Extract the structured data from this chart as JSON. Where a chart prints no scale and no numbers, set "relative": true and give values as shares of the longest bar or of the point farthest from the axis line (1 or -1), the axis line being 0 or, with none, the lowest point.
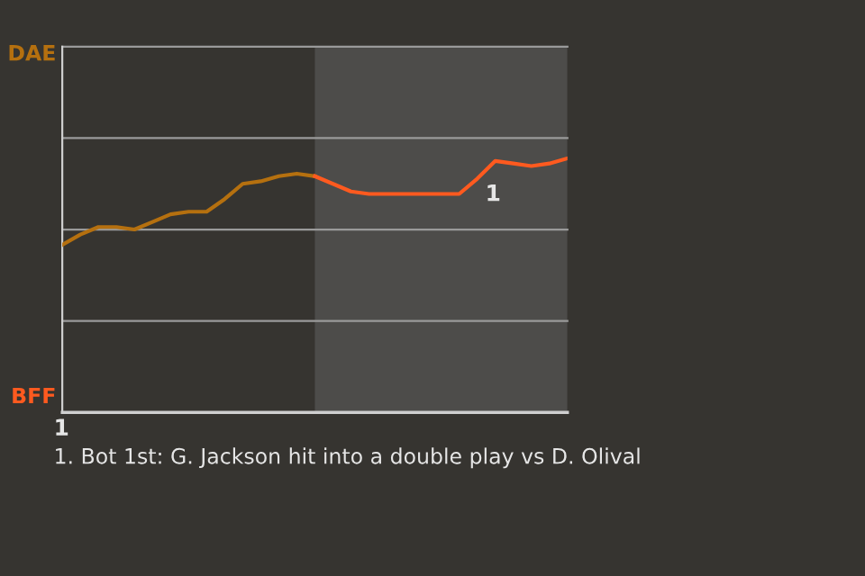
{
  "chart_data": {
    "type": "line",
    "relative": true,
    "categories": [
      null,
      null,
      null,
      null,
      null,
      null,
      null,
      null,
      null,
      null,
      null,
      null,
      null,
      null,
      null,
      null,
      null,
      null,
      null,
      null,
      null,
      null,
      null,
      null,
      null,
      null,
      null,
      null,
      null
    ],
    "series": [
      {
        "color": "#b5700f",
        "values": [
          0.66,
          0.7,
          0.73,
          0.73,
          0.72,
          0.75,
          0.78,
          0.79,
          0.79,
          0.84,
          0.9,
          0.91,
          0.93,
          0.94,
          0.93,
          null,
          null,
          null,
          null,
          null,
          null,
          null,
          null,
          null,
          null,
          null,
          null,
          null,
          null
        ]
      },
      {
        "color": "#ff5a1f",
        "values": [
          null,
          null,
          null,
          null,
          null,
          null,
          null,
          null,
          null,
          null,
          null,
          null,
          null,
          null,
          0.93,
          0.9,
          0.87,
          0.86,
          0.86,
          0.86,
          0.86,
          0.86,
          0.86,
          0.92,
          0.99,
          0.98,
          0.97,
          0.98,
          1
        ]
      }
    ],
    "ref_lines": [
      {
        "axis": "y",
        "value": 0.36,
        "color": "#9a9a9a"
      },
      {
        "axis": "y",
        "value": 0.72,
        "color": "#9a9a9a"
      },
      {
        "axis": "y",
        "value": 1.08,
        "color": "#9a9a9a"
      },
      {
        "axis": "y",
        "value": 1.44,
        "color": "#9a9a9a"
      }
    ],
    "annotations": [
      "DAE",
      "1",
      "BFF",
      "1",
      "1. Bot 1st: G. Jackson hit into a double play vs D. Olival"
    ]
  }
}
